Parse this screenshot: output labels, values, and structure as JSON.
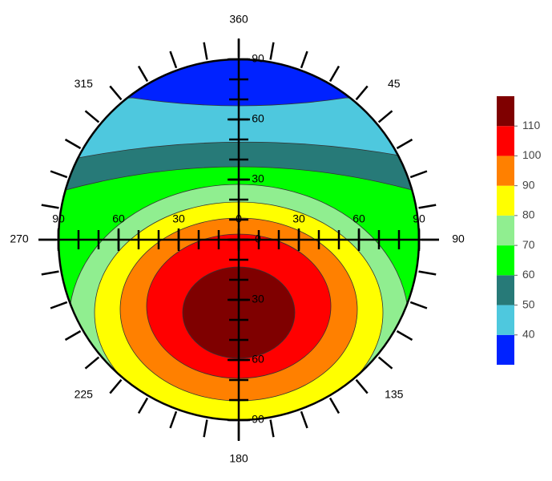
{
  "chart_data": {
    "type": "polar_contour",
    "angle_ticks": [
      {
        "value": 0,
        "label": "360"
      },
      45,
      90,
      135,
      180,
      225,
      270,
      315
    ],
    "xlim": [
      -90,
      90
    ],
    "xticks": [
      {
        "value": -90,
        "label": "90"
      },
      {
        "value": -60,
        "label": "60"
      },
      {
        "value": -30,
        "label": "30"
      },
      0,
      30,
      60,
      90
    ],
    "ylim": [
      -90,
      90
    ],
    "yticks": [
      90,
      60,
      30,
      0,
      {
        "value": -30,
        "label": "30"
      },
      {
        "value": -60,
        "label": "60"
      },
      {
        "value": -90,
        "label": "90"
      }
    ],
    "colorbar": {
      "zlim": [
        30,
        120
      ],
      "levels": [
        30,
        40,
        50,
        60,
        70,
        80,
        90,
        100,
        110,
        120
      ],
      "colors": [
        "#0022ff",
        "#4ec8de",
        "#277a78",
        "#00ff00",
        "#90ee90",
        "#ffff00",
        "#ff8000",
        "#ff0000",
        "#7f0000"
      ],
      "ticks": [
        40,
        50,
        60,
        70,
        80,
        90,
        100,
        110
      ]
    }
  }
}
